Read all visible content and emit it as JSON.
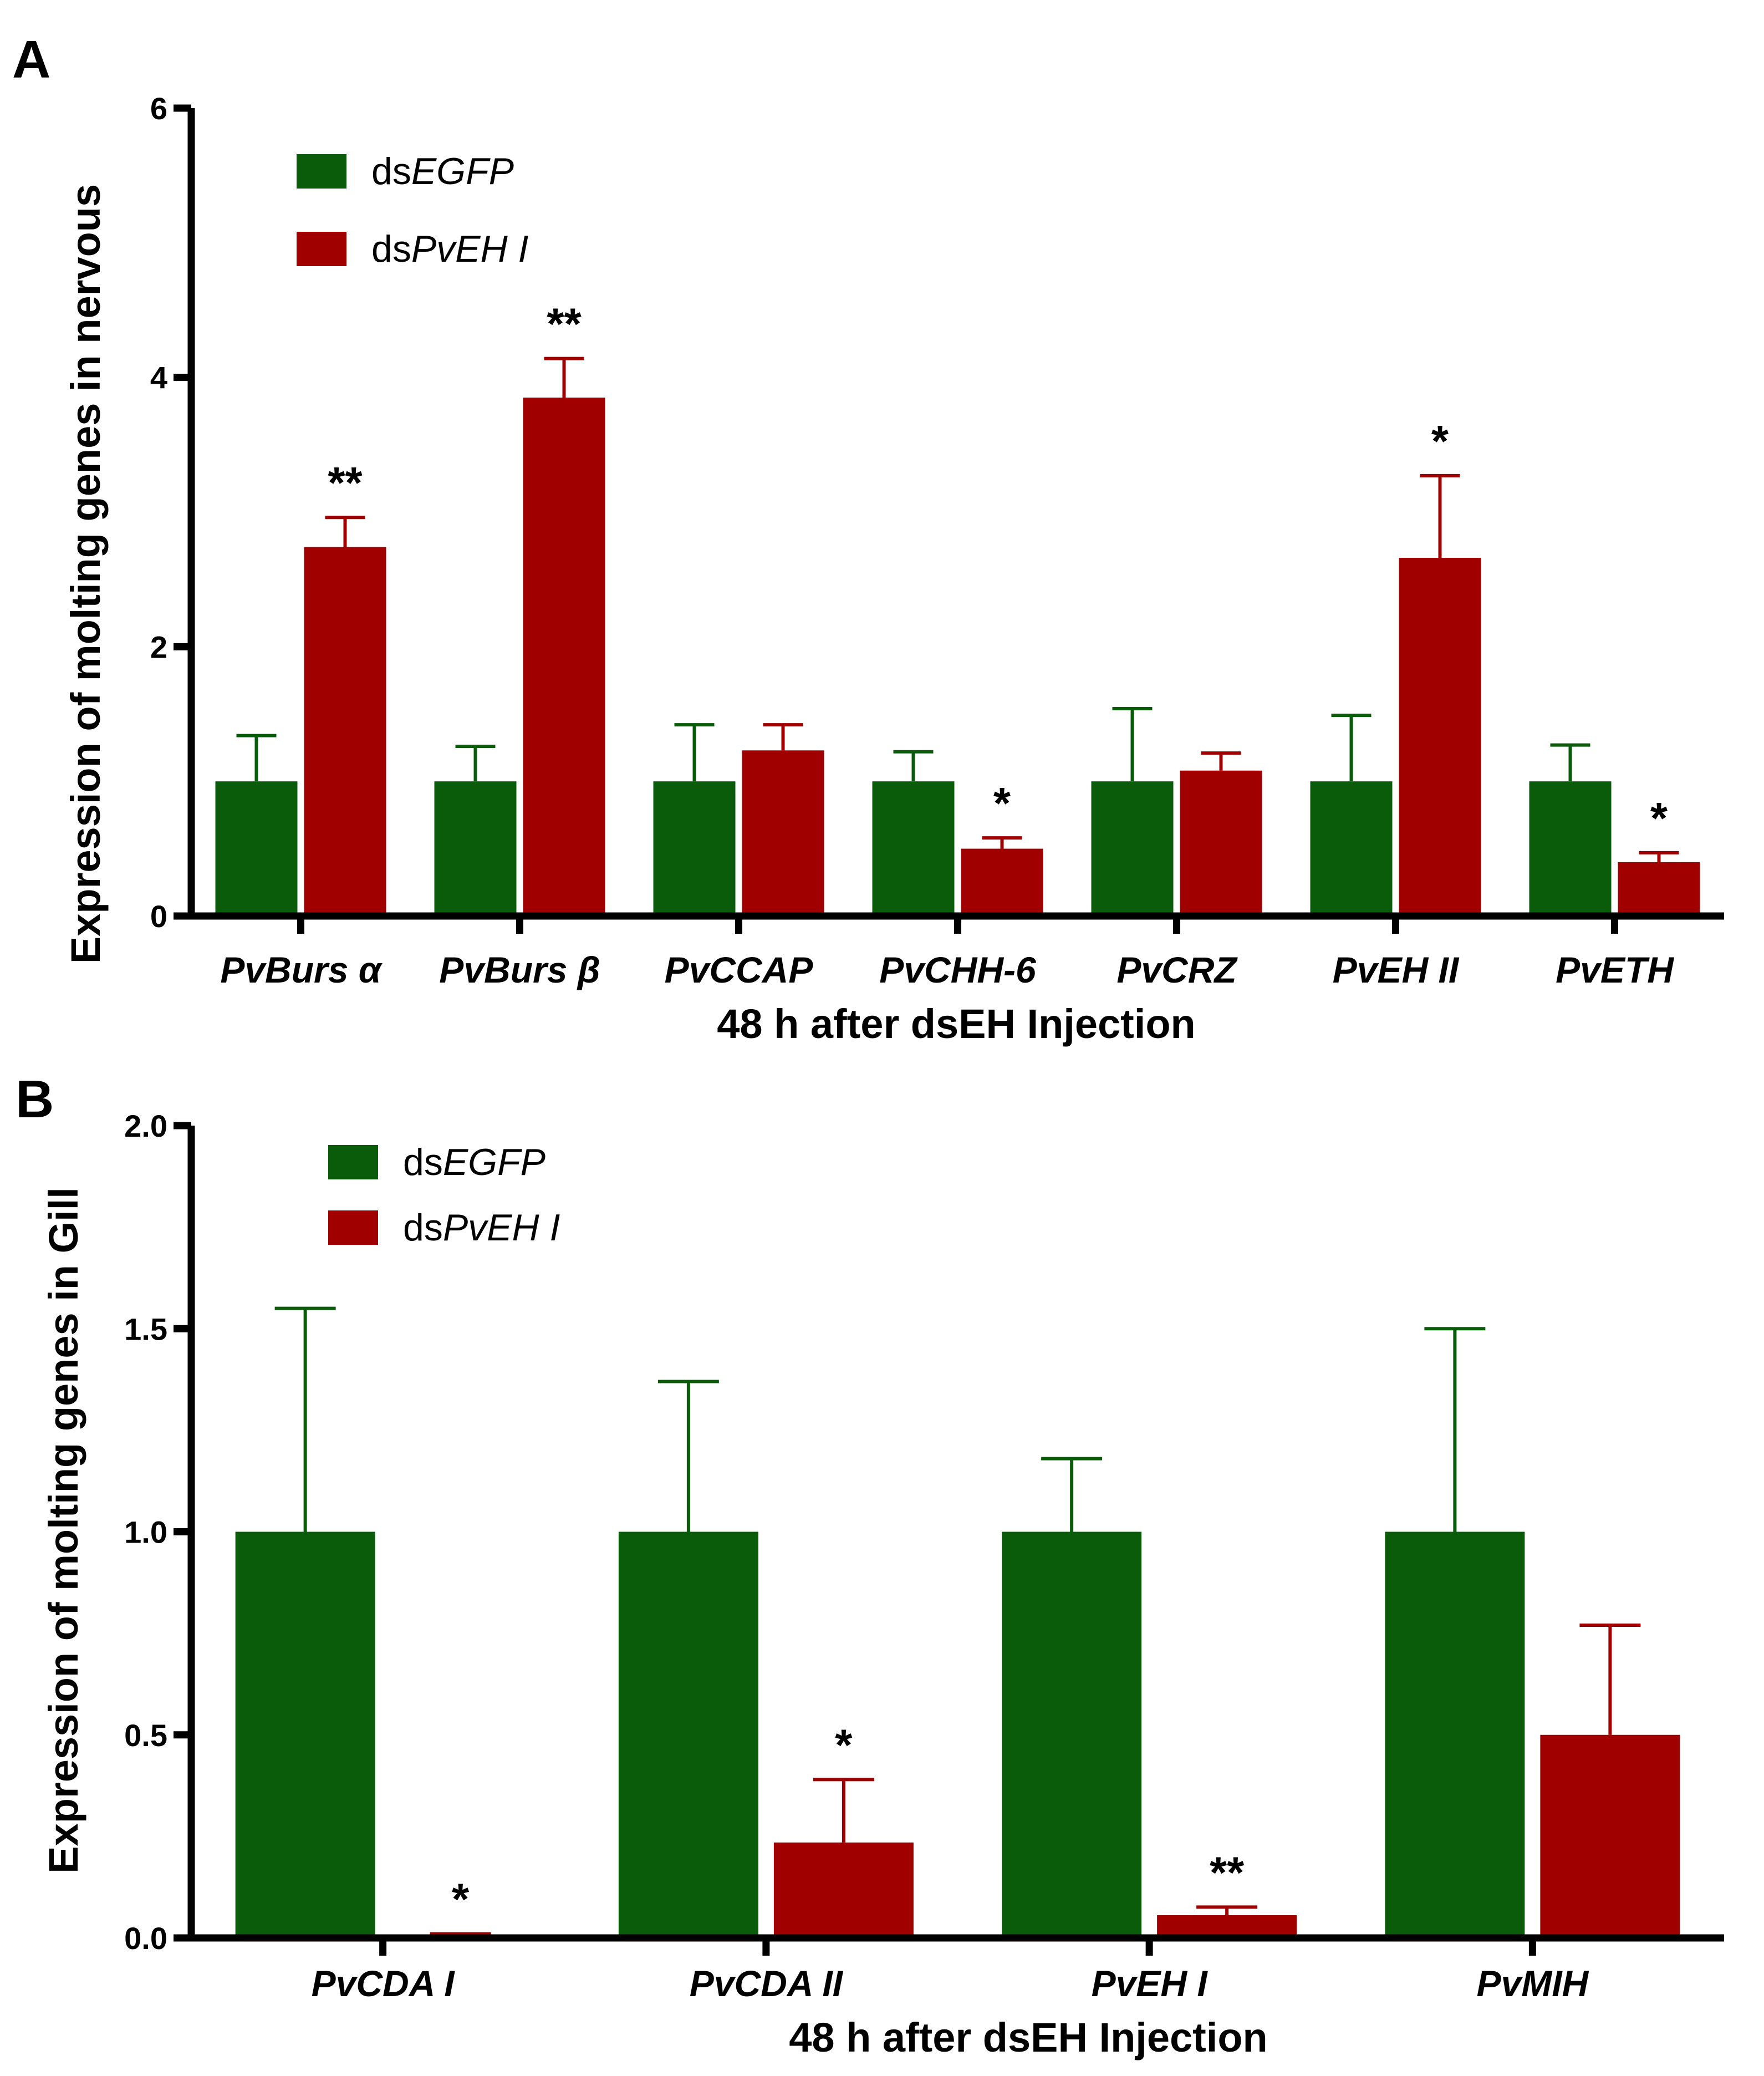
{
  "colors": {
    "control": "#0a5c0a",
    "treatment": "#a00000",
    "axis": "#000000"
  },
  "chart_data": [
    {
      "type": "bar",
      "panel_label": "A",
      "title": "",
      "xlabel": "48 h after dsEH Injection",
      "ylabel": "Expression of molting genes in nervous",
      "ylim": [
        0,
        6
      ],
      "yticks": [
        "0",
        "2",
        "4",
        "6"
      ],
      "ytick_values": [
        0,
        2,
        4,
        6
      ],
      "categories": [
        "PvBurs α",
        "PvBurs β",
        "PvCCAP",
        "PvCHH-6",
        "PvCRZ",
        "PvEH II",
        "PvETH"
      ],
      "legend_position": "top-left",
      "legend": [
        {
          "prefix": "ds",
          "italic": "EGFP"
        },
        {
          "prefix": "ds",
          "italic": "PvEH I"
        }
      ],
      "series": [
        {
          "name": "dsEGFP",
          "values": [
            1.0,
            1.0,
            1.0,
            1.0,
            1.0,
            1.0,
            1.0
          ],
          "errors": [
            0.34,
            0.26,
            0.42,
            0.22,
            0.54,
            0.49,
            0.27
          ]
        },
        {
          "name": "dsPvEH I",
          "values": [
            2.74,
            3.85,
            1.23,
            0.5,
            1.08,
            2.66,
            0.4
          ],
          "errors": [
            0.22,
            0.29,
            0.19,
            0.08,
            0.13,
            0.61,
            0.07
          ]
        }
      ],
      "significance": [
        "**",
        "**",
        "",
        "*",
        "",
        "*",
        "*"
      ]
    },
    {
      "type": "bar",
      "panel_label": "B",
      "title": "",
      "xlabel": "48 h after dsEH Injection",
      "ylabel": "Expression of molting genes in Gill",
      "ylim": [
        0,
        2.0
      ],
      "yticks": [
        "0.0",
        "0.5",
        "1.0",
        "1.5",
        "2.0"
      ],
      "ytick_values": [
        0,
        0.5,
        1.0,
        1.5,
        2.0
      ],
      "categories": [
        "PvCDA I",
        "PvCDA II",
        "PvEH I",
        "PvMIH"
      ],
      "legend_position": "top-left",
      "legend": [
        {
          "prefix": "ds",
          "italic": "EGFP"
        },
        {
          "prefix": "ds",
          "italic": "PvEH I"
        }
      ],
      "series": [
        {
          "name": "dsEGFP",
          "values": [
            1.0,
            1.0,
            1.0,
            1.0
          ],
          "errors": [
            0.55,
            0.37,
            0.18,
            0.5
          ]
        },
        {
          "name": "dsPvEH I",
          "values": [
            0.006,
            0.235,
            0.056,
            0.5
          ],
          "errors": [
            0.004,
            0.155,
            0.02,
            0.27
          ]
        }
      ],
      "significance": [
        "*",
        "*",
        "**",
        ""
      ]
    }
  ]
}
